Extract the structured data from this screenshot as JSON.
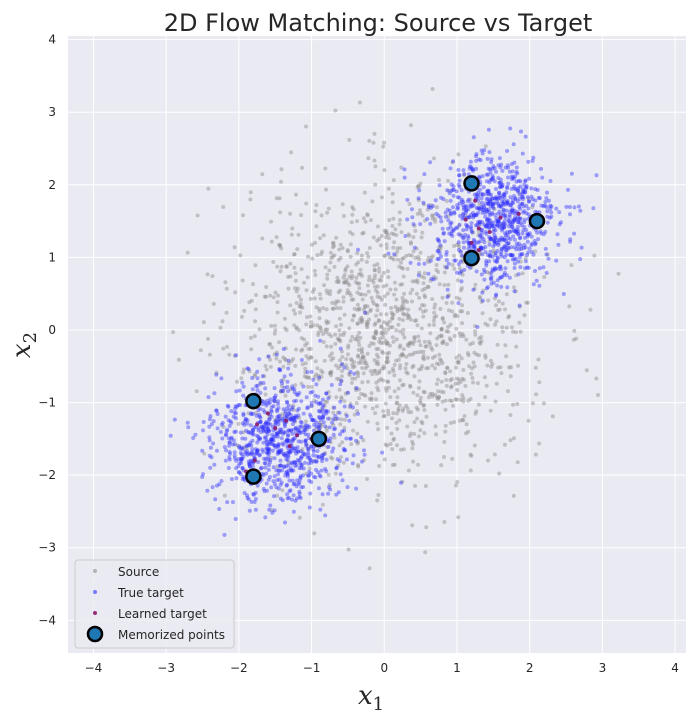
{
  "chart_data": {
    "type": "scatter",
    "title": "2D Flow Matching: Source vs Target",
    "xlabel": "x",
    "xlabel_sub": "1",
    "ylabel": "x",
    "ylabel_sub": "2",
    "xlim": [
      -4.35,
      4.15
    ],
    "ylim": [
      -4.45,
      4.05
    ],
    "xticks": [
      -4,
      -3,
      -2,
      -1,
      0,
      1,
      2,
      3,
      4
    ],
    "yticks": [
      -4,
      -3,
      -2,
      -1,
      0,
      1,
      2,
      3,
      4
    ],
    "grid": true,
    "legend_position": "lower-left",
    "colors": {
      "plot_background": "#eaeaf2",
      "grid": "#ffffff",
      "source": "#8c8c8c",
      "true_target": "#2a2aff",
      "learned_target": "#8b1a6b",
      "memorized_fill": "#1f77b4",
      "memorized_edge": "#000000"
    },
    "series": [
      {
        "name": "Source",
        "kind": "gaussian-cloud",
        "center": [
          0,
          0
        ],
        "spread": [
          1.0,
          1.0
        ],
        "count": 1400
      },
      {
        "name": "True target",
        "kind": "gaussian-clusters",
        "clusters": [
          {
            "center": [
              1.5,
              1.5
            ],
            "spread": [
              0.45,
              0.45
            ],
            "count": 850
          },
          {
            "center": [
              -1.45,
              -1.5
            ],
            "spread": [
              0.45,
              0.45
            ],
            "count": 850
          }
        ]
      },
      {
        "name": "Learned target",
        "kind": "points",
        "points": [
          [
            1.12,
            1.52
          ],
          [
            1.3,
            1.4
          ],
          [
            1.6,
            1.55
          ],
          [
            1.85,
            1.6
          ],
          [
            2.05,
            1.55
          ],
          [
            1.2,
            1.2
          ],
          [
            1.3,
            1.1
          ],
          [
            1.25,
            1.78
          ],
          [
            1.2,
            1.95
          ],
          [
            1.45,
            1.35
          ],
          [
            -1.75,
            -1.3
          ],
          [
            -1.6,
            -1.15
          ],
          [
            -1.35,
            -1.25
          ],
          [
            -1.2,
            -1.45
          ],
          [
            -1.0,
            -1.5
          ],
          [
            -1.78,
            -1.8
          ],
          [
            -1.85,
            -2.05
          ],
          [
            -1.9,
            -1.95
          ],
          [
            -1.5,
            -1.35
          ],
          [
            -1.3,
            -1.6
          ]
        ]
      },
      {
        "name": "Memorized points",
        "kind": "points",
        "points": [
          [
            1.2,
            2.02
          ],
          [
            2.1,
            1.5
          ],
          [
            1.2,
            0.99
          ],
          [
            -1.8,
            -0.98
          ],
          [
            -0.9,
            -1.5
          ],
          [
            -1.8,
            -2.02
          ]
        ]
      }
    ]
  }
}
